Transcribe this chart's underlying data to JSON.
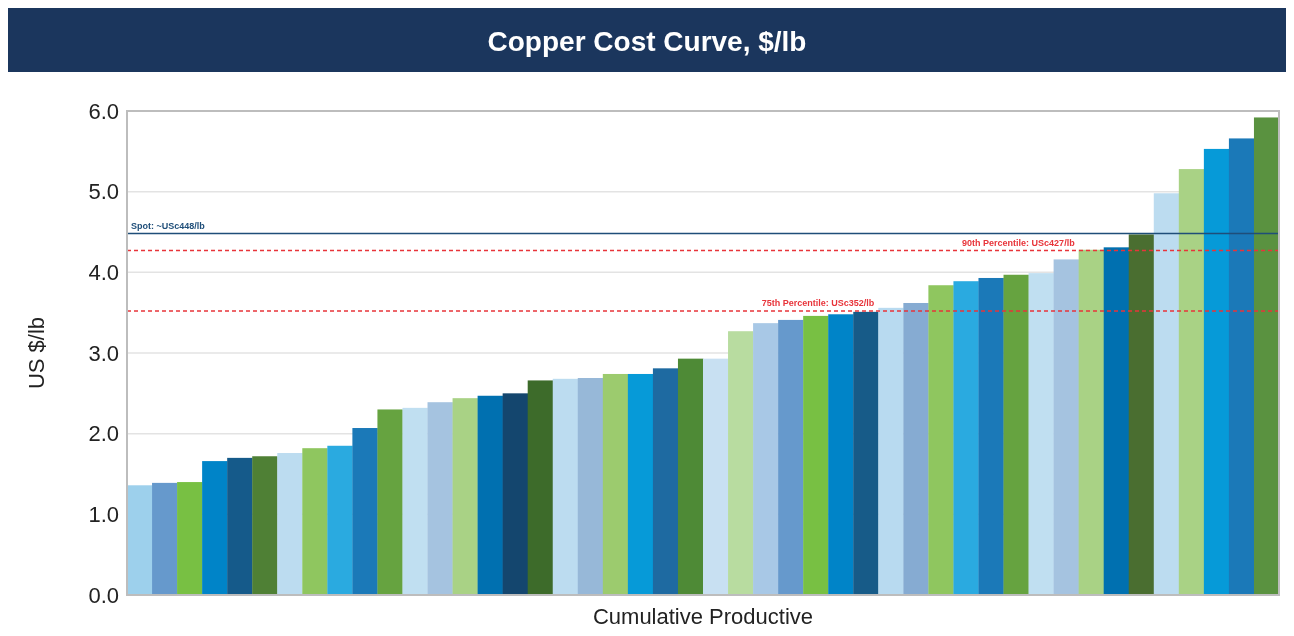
{
  "chart_data": {
    "type": "bar",
    "title": "Copper Cost Curve, $/lb",
    "xlabel": "Cumulative Productive",
    "ylabel": "US $/lb",
    "categories": [
      null,
      null,
      null,
      null,
      null,
      null,
      null,
      null,
      null,
      null,
      null,
      null,
      null,
      null,
      null,
      null,
      null,
      null,
      null,
      null,
      null,
      null,
      null,
      null,
      null,
      null,
      null,
      null,
      null,
      null,
      null,
      null,
      null,
      null,
      null,
      null,
      null,
      null,
      null,
      null,
      null,
      null,
      null,
      null,
      null,
      null
    ],
    "values": [
      1.36,
      1.39,
      1.4,
      1.66,
      1.7,
      1.72,
      1.76,
      1.82,
      1.85,
      2.07,
      2.3,
      2.32,
      2.39,
      2.44,
      2.47,
      2.5,
      2.66,
      2.68,
      2.69,
      2.74,
      2.74,
      2.81,
      2.93,
      2.93,
      3.27,
      3.37,
      3.41,
      3.46,
      3.48,
      3.51,
      3.56,
      3.62,
      3.84,
      3.89,
      3.93,
      3.97,
      3.99,
      4.16,
      4.28,
      4.31,
      4.47,
      4.98,
      5.28,
      5.53,
      5.66,
      5.92
    ],
    "colors": [
      "#9dd0ec",
      "#6699cc",
      "#78c043",
      "#0084c8",
      "#155a8a",
      "#4f8035",
      "#bcdcf0",
      "#8fc65f",
      "#2aaae0",
      "#1b79b8",
      "#66a340",
      "#c0dff1",
      "#a5c3e0",
      "#a9d285",
      "#0070b0",
      "#14466e",
      "#3d6b2a",
      "#bcdcf0",
      "#97b8d8",
      "#9ccb6e",
      "#069ad8",
      "#1e6aa1",
      "#4e8a36",
      "#c8e0f2",
      "#b8dca0",
      "#a8c8e6",
      "#6699cc",
      "#78c043",
      "#0084c8",
      "#175b88",
      "#b8daf0",
      "#86abd2",
      "#8fc65f",
      "#2aaae0",
      "#1b79b8",
      "#66a340",
      "#c0dff1",
      "#a5c3e0",
      "#a9d285",
      "#0070b0",
      "#4a6e30",
      "#bcdcf0",
      "#a9d285",
      "#069ad8",
      "#1b79b8",
      "#5a9240"
    ],
    "ylim": [
      0,
      6
    ],
    "yticks": [
      {
        "value": 0,
        "label": "0.0"
      },
      {
        "value": 1,
        "label": "1.0"
      },
      {
        "value": 2,
        "label": "2.0"
      },
      {
        "value": 3,
        "label": "3.0"
      },
      {
        "value": 4,
        "label": "4.0"
      },
      {
        "value": 5,
        "label": "5.0"
      },
      {
        "value": 6,
        "label": "6.0"
      }
    ],
    "grid": "y",
    "ref_lines": [
      {
        "axis": "y",
        "value": 4.48,
        "label": "Spot: ~USc448/lb",
        "color": "#1f4e79",
        "line_style": "solid"
      },
      {
        "axis": "y",
        "value": 4.27,
        "label": "90th Percentile: USc427/lb",
        "color": "#e8343a",
        "line_style": "dashed"
      },
      {
        "axis": "y",
        "value": 3.52,
        "label": "75th Percentile: USc352/lb",
        "color": "#e8343a",
        "line_style": "dashed"
      }
    ]
  }
}
